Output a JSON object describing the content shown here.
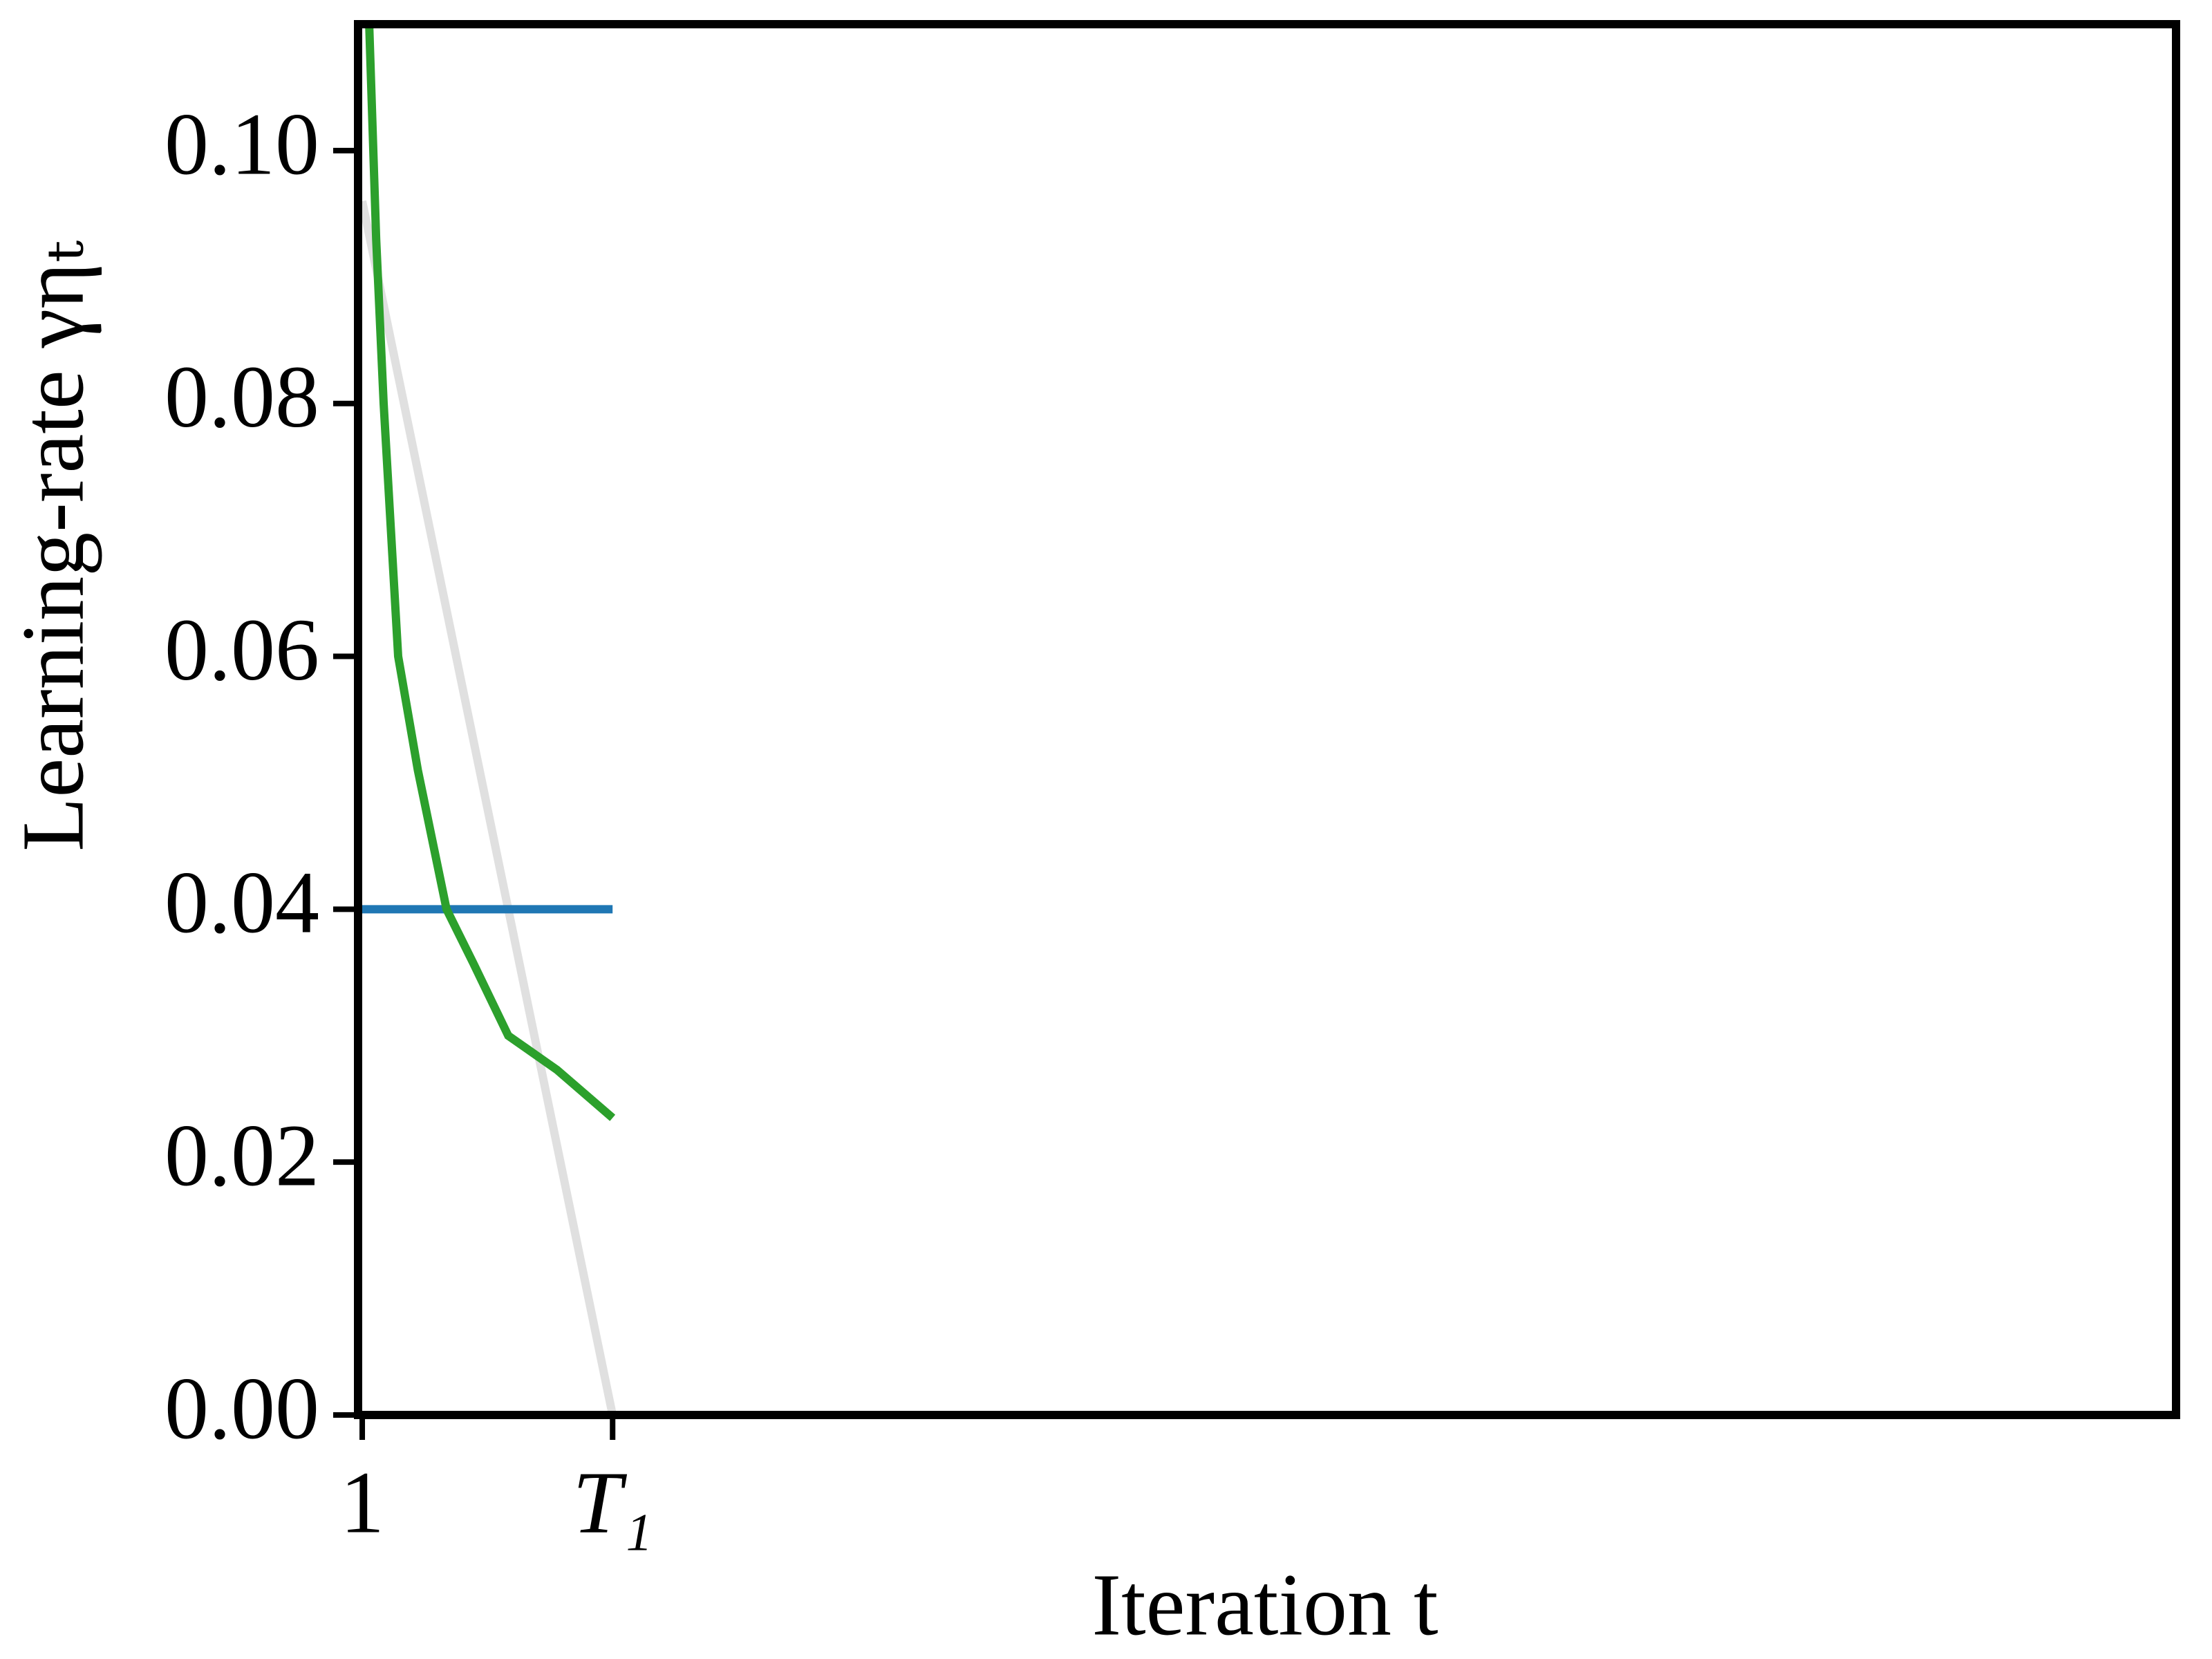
{
  "chart_data": {
    "type": "line",
    "xlabel": "Iteration t",
    "ylabel": "Learning-rate γηₜ",
    "xlim": [
      0.85,
      66.2
    ],
    "ylim": [
      0,
      0.11
    ],
    "xticks": [
      1,
      {
        "value": 10,
        "label": "T₁"
      }
    ],
    "yticks": [
      {
        "value": 0,
        "label": "0.00"
      },
      {
        "value": 0.02,
        "label": "0.02"
      },
      {
        "value": 0.04,
        "label": "0.04"
      },
      {
        "value": 0.06,
        "label": "0.06"
      },
      {
        "value": 0.08,
        "label": "0.08"
      },
      {
        "value": 0.1,
        "label": "0.10"
      }
    ],
    "series": [
      {
        "color": "#e0e0e0",
        "x": [
          1,
          10
        ],
        "values": [
          0.096,
          0
        ]
      },
      {
        "color": "#1f77b4",
        "x": [
          1,
          10
        ],
        "values": [
          0.04,
          0.04
        ]
      },
      {
        "color": "#2ca02c",
        "x": [
          1.25,
          1.5,
          1.77,
          2.29,
          3,
          4.03,
          5,
          6.25,
          8,
          10
        ],
        "values": [
          0.11,
          0.093,
          0.08,
          0.06,
          0.051,
          0.04,
          0.0357,
          0.03,
          0.0273,
          0.0235
        ]
      }
    ]
  }
}
